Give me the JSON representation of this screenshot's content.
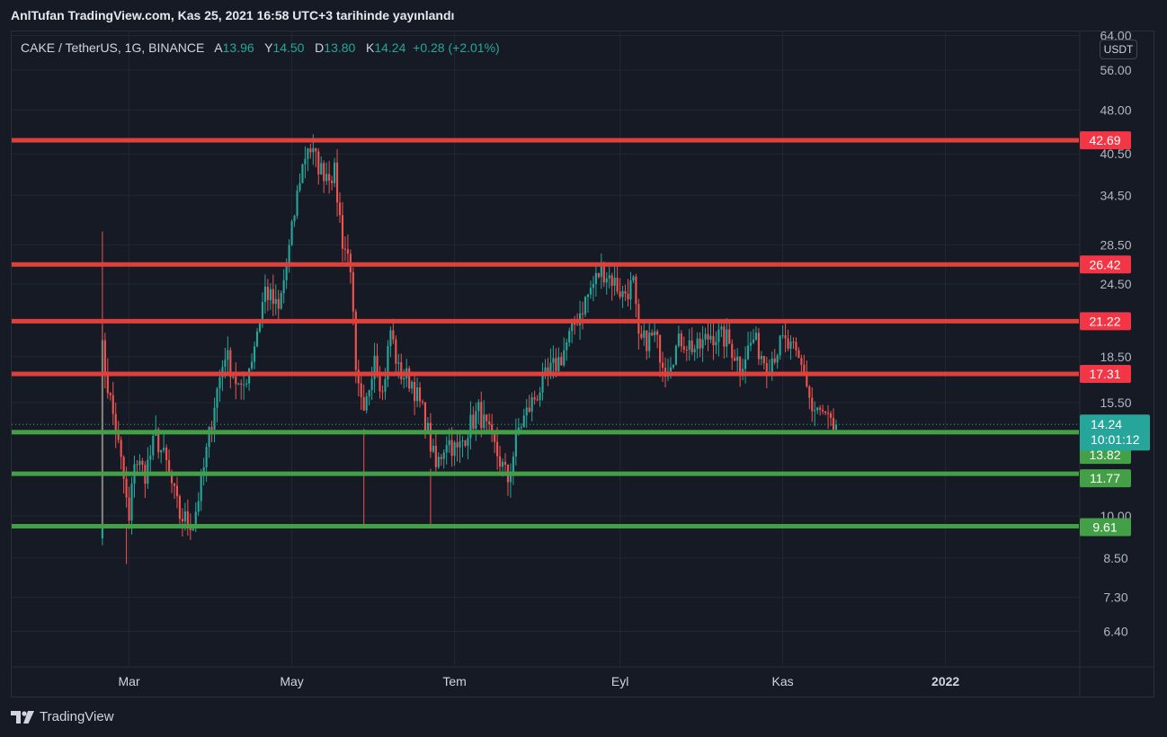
{
  "header": {
    "published": "AnlTufan TradingView.com, Kas 25, 2021 16:58 UTC+3 tarihinde yayınlandı"
  },
  "legend": {
    "symbol": "CAKE / TetherUS, 1G, BINANCE",
    "open_label": "A",
    "open": "13.96",
    "high_label": "Y",
    "high": "14.50",
    "low_label": "D",
    "low": "13.80",
    "close_label": "K",
    "close": "14.24",
    "change": "+0.28 (+2.01%)"
  },
  "currency_button": "USDT",
  "brand": {
    "name": "TradingView",
    "icon": "tradingview-logo-icon"
  },
  "colors": {
    "up": "#26a69a",
    "down": "#ef5350",
    "resistance": "#e0403b",
    "support": "#43a047",
    "background": "#161a25",
    "grid": "#232733"
  },
  "chart_data": {
    "type": "candlestick",
    "y_scale": "log",
    "ylim": [
      5.6,
      65
    ],
    "y_ticks": [
      "64.00",
      "56.00",
      "48.00",
      "40.50",
      "34.50",
      "28.50",
      "24.50",
      "18.50",
      "15.50",
      "10.00",
      "8.50",
      "7.30",
      "6.40"
    ],
    "x_ticks": [
      {
        "label": "Mar",
        "date": "2021-03-01"
      },
      {
        "label": "May",
        "date": "2021-05-01"
      },
      {
        "label": "Tem",
        "date": "2021-07-01"
      },
      {
        "label": "Eyl",
        "date": "2021-09-01"
      },
      {
        "label": "Kas",
        "date": "2021-11-01"
      },
      {
        "label": "2022",
        "date": "2022-01-01"
      }
    ],
    "xlim": [
      "2021-01-16",
      "2022-02-20"
    ],
    "resistance_levels": [
      {
        "value": 42.69,
        "label": "42.69"
      },
      {
        "value": 26.42,
        "label": "26.42"
      },
      {
        "value": 21.22,
        "label": "21.22"
      },
      {
        "value": 17.31,
        "label": "17.31"
      }
    ],
    "support_levels": [
      {
        "value": 13.82,
        "label": "13.82"
      },
      {
        "value": 11.77,
        "label": "11.77"
      },
      {
        "value": 9.61,
        "label": "9.61"
      }
    ],
    "last_price": {
      "value": 14.24,
      "label": "14.24",
      "countdown": "10:01:12"
    },
    "anchors": [
      [
        "2021-02-18",
        9.6
      ],
      [
        "2021-02-19",
        19.0
      ],
      [
        "2021-02-21",
        16.5
      ],
      [
        "2021-02-24",
        14.0
      ],
      [
        "2021-02-27",
        11.5
      ],
      [
        "2021-03-01",
        9.7
      ],
      [
        "2021-03-03",
        12.5
      ],
      [
        "2021-03-07",
        11.8
      ],
      [
        "2021-03-11",
        13.6
      ],
      [
        "2021-03-15",
        12.2
      ],
      [
        "2021-03-20",
        10.0
      ],
      [
        "2021-03-25",
        9.7
      ],
      [
        "2021-03-29",
        12.0
      ],
      [
        "2021-04-02",
        15.5
      ],
      [
        "2021-04-06",
        18.8
      ],
      [
        "2021-04-12",
        16.0
      ],
      [
        "2021-04-16",
        18.5
      ],
      [
        "2021-04-21",
        24.0
      ],
      [
        "2021-04-26",
        22.0
      ],
      [
        "2021-04-30",
        28.0
      ],
      [
        "2021-05-04",
        37.0
      ],
      [
        "2021-05-07",
        42.0
      ],
      [
        "2021-05-12",
        38.0
      ],
      [
        "2021-05-17",
        37.5
      ],
      [
        "2021-05-20",
        29.0
      ],
      [
        "2021-05-23",
        26.5
      ],
      [
        "2021-05-25",
        17.0
      ],
      [
        "2021-05-28",
        14.5
      ],
      [
        "2021-06-01",
        19.0
      ],
      [
        "2021-06-04",
        16.0
      ],
      [
        "2021-06-07",
        20.5
      ],
      [
        "2021-06-10",
        17.5
      ],
      [
        "2021-06-15",
        16.8
      ],
      [
        "2021-06-20",
        14.5
      ],
      [
        "2021-06-24",
        12.0
      ],
      [
        "2021-06-28",
        13.5
      ],
      [
        "2021-07-02",
        12.8
      ],
      [
        "2021-07-06",
        14.0
      ],
      [
        "2021-07-10",
        15.0
      ],
      [
        "2021-07-16",
        13.0
      ],
      [
        "2021-07-21",
        11.5
      ],
      [
        "2021-07-25",
        14.0
      ],
      [
        "2021-07-30",
        15.5
      ],
      [
        "2021-08-04",
        17.0
      ],
      [
        "2021-08-10",
        18.5
      ],
      [
        "2021-08-16",
        21.5
      ],
      [
        "2021-08-21",
        24.0
      ],
      [
        "2021-08-25",
        26.0
      ],
      [
        "2021-08-29",
        25.0
      ],
      [
        "2021-09-02",
        23.5
      ],
      [
        "2021-09-06",
        24.5
      ],
      [
        "2021-09-08",
        19.5
      ],
      [
        "2021-09-14",
        20.0
      ],
      [
        "2021-09-18",
        17.8
      ],
      [
        "2021-09-24",
        19.8
      ],
      [
        "2021-09-30",
        19.0
      ],
      [
        "2021-10-05",
        20.2
      ],
      [
        "2021-10-11",
        19.8
      ],
      [
        "2021-10-16",
        18.0
      ],
      [
        "2021-10-21",
        19.8
      ],
      [
        "2021-10-26",
        18.0
      ],
      [
        "2021-11-01",
        19.6
      ],
      [
        "2021-11-05",
        18.8
      ],
      [
        "2021-11-09",
        17.5
      ],
      [
        "2021-11-12",
        15.0
      ],
      [
        "2021-11-16",
        14.8
      ],
      [
        "2021-11-20",
        13.96
      ]
    ],
    "final_candle": {
      "date": "2021-11-21",
      "open": 13.96,
      "high": 14.5,
      "low": 13.8,
      "close": 14.24
    }
  }
}
